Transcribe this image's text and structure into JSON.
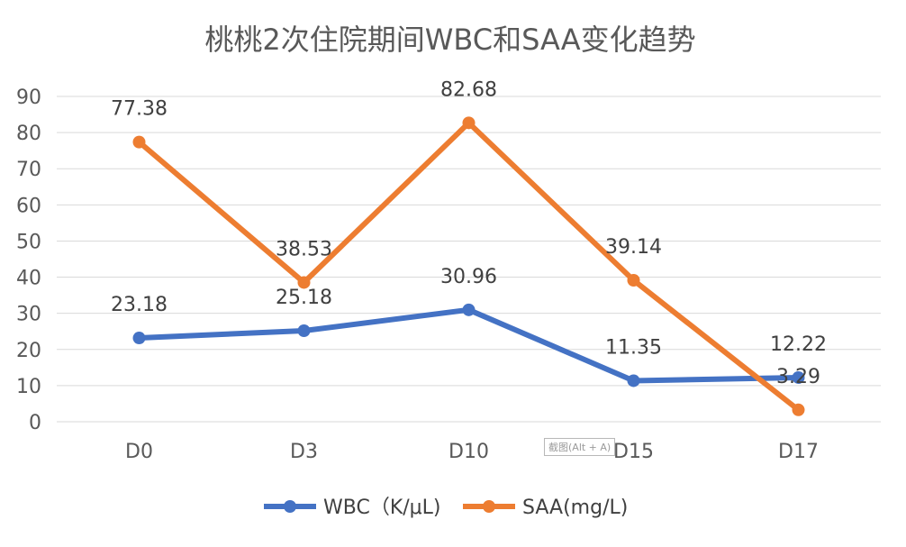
{
  "chart_data": {
    "type": "line",
    "title": "桃桃2次住院期间WBC和SAA变化趋势",
    "categories": [
      "D0",
      "D3",
      "D10",
      "D15",
      "D17"
    ],
    "yticks": [
      "0",
      "10",
      "20",
      "30",
      "40",
      "50",
      "60",
      "70",
      "80",
      "90"
    ],
    "ylim": [
      0,
      90
    ],
    "grid": true,
    "legend_position": "bottom",
    "series": [
      {
        "name": "WBC（K/μL)",
        "color": "#4472c4",
        "values": [
          23.18,
          25.18,
          30.96,
          11.35,
          12.22
        ],
        "labels": [
          "23.18",
          "25.18",
          "30.96",
          "11.35",
          "12.22"
        ]
      },
      {
        "name": "SAA(mg/L)",
        "color": "#ed7d31",
        "values": [
          77.38,
          38.53,
          82.68,
          39.14,
          3.29
        ],
        "labels": [
          "77.38",
          "38.53",
          "82.68",
          "39.14",
          "3.29"
        ]
      }
    ]
  },
  "tooltip": {
    "text": "截图(Alt + A)"
  }
}
